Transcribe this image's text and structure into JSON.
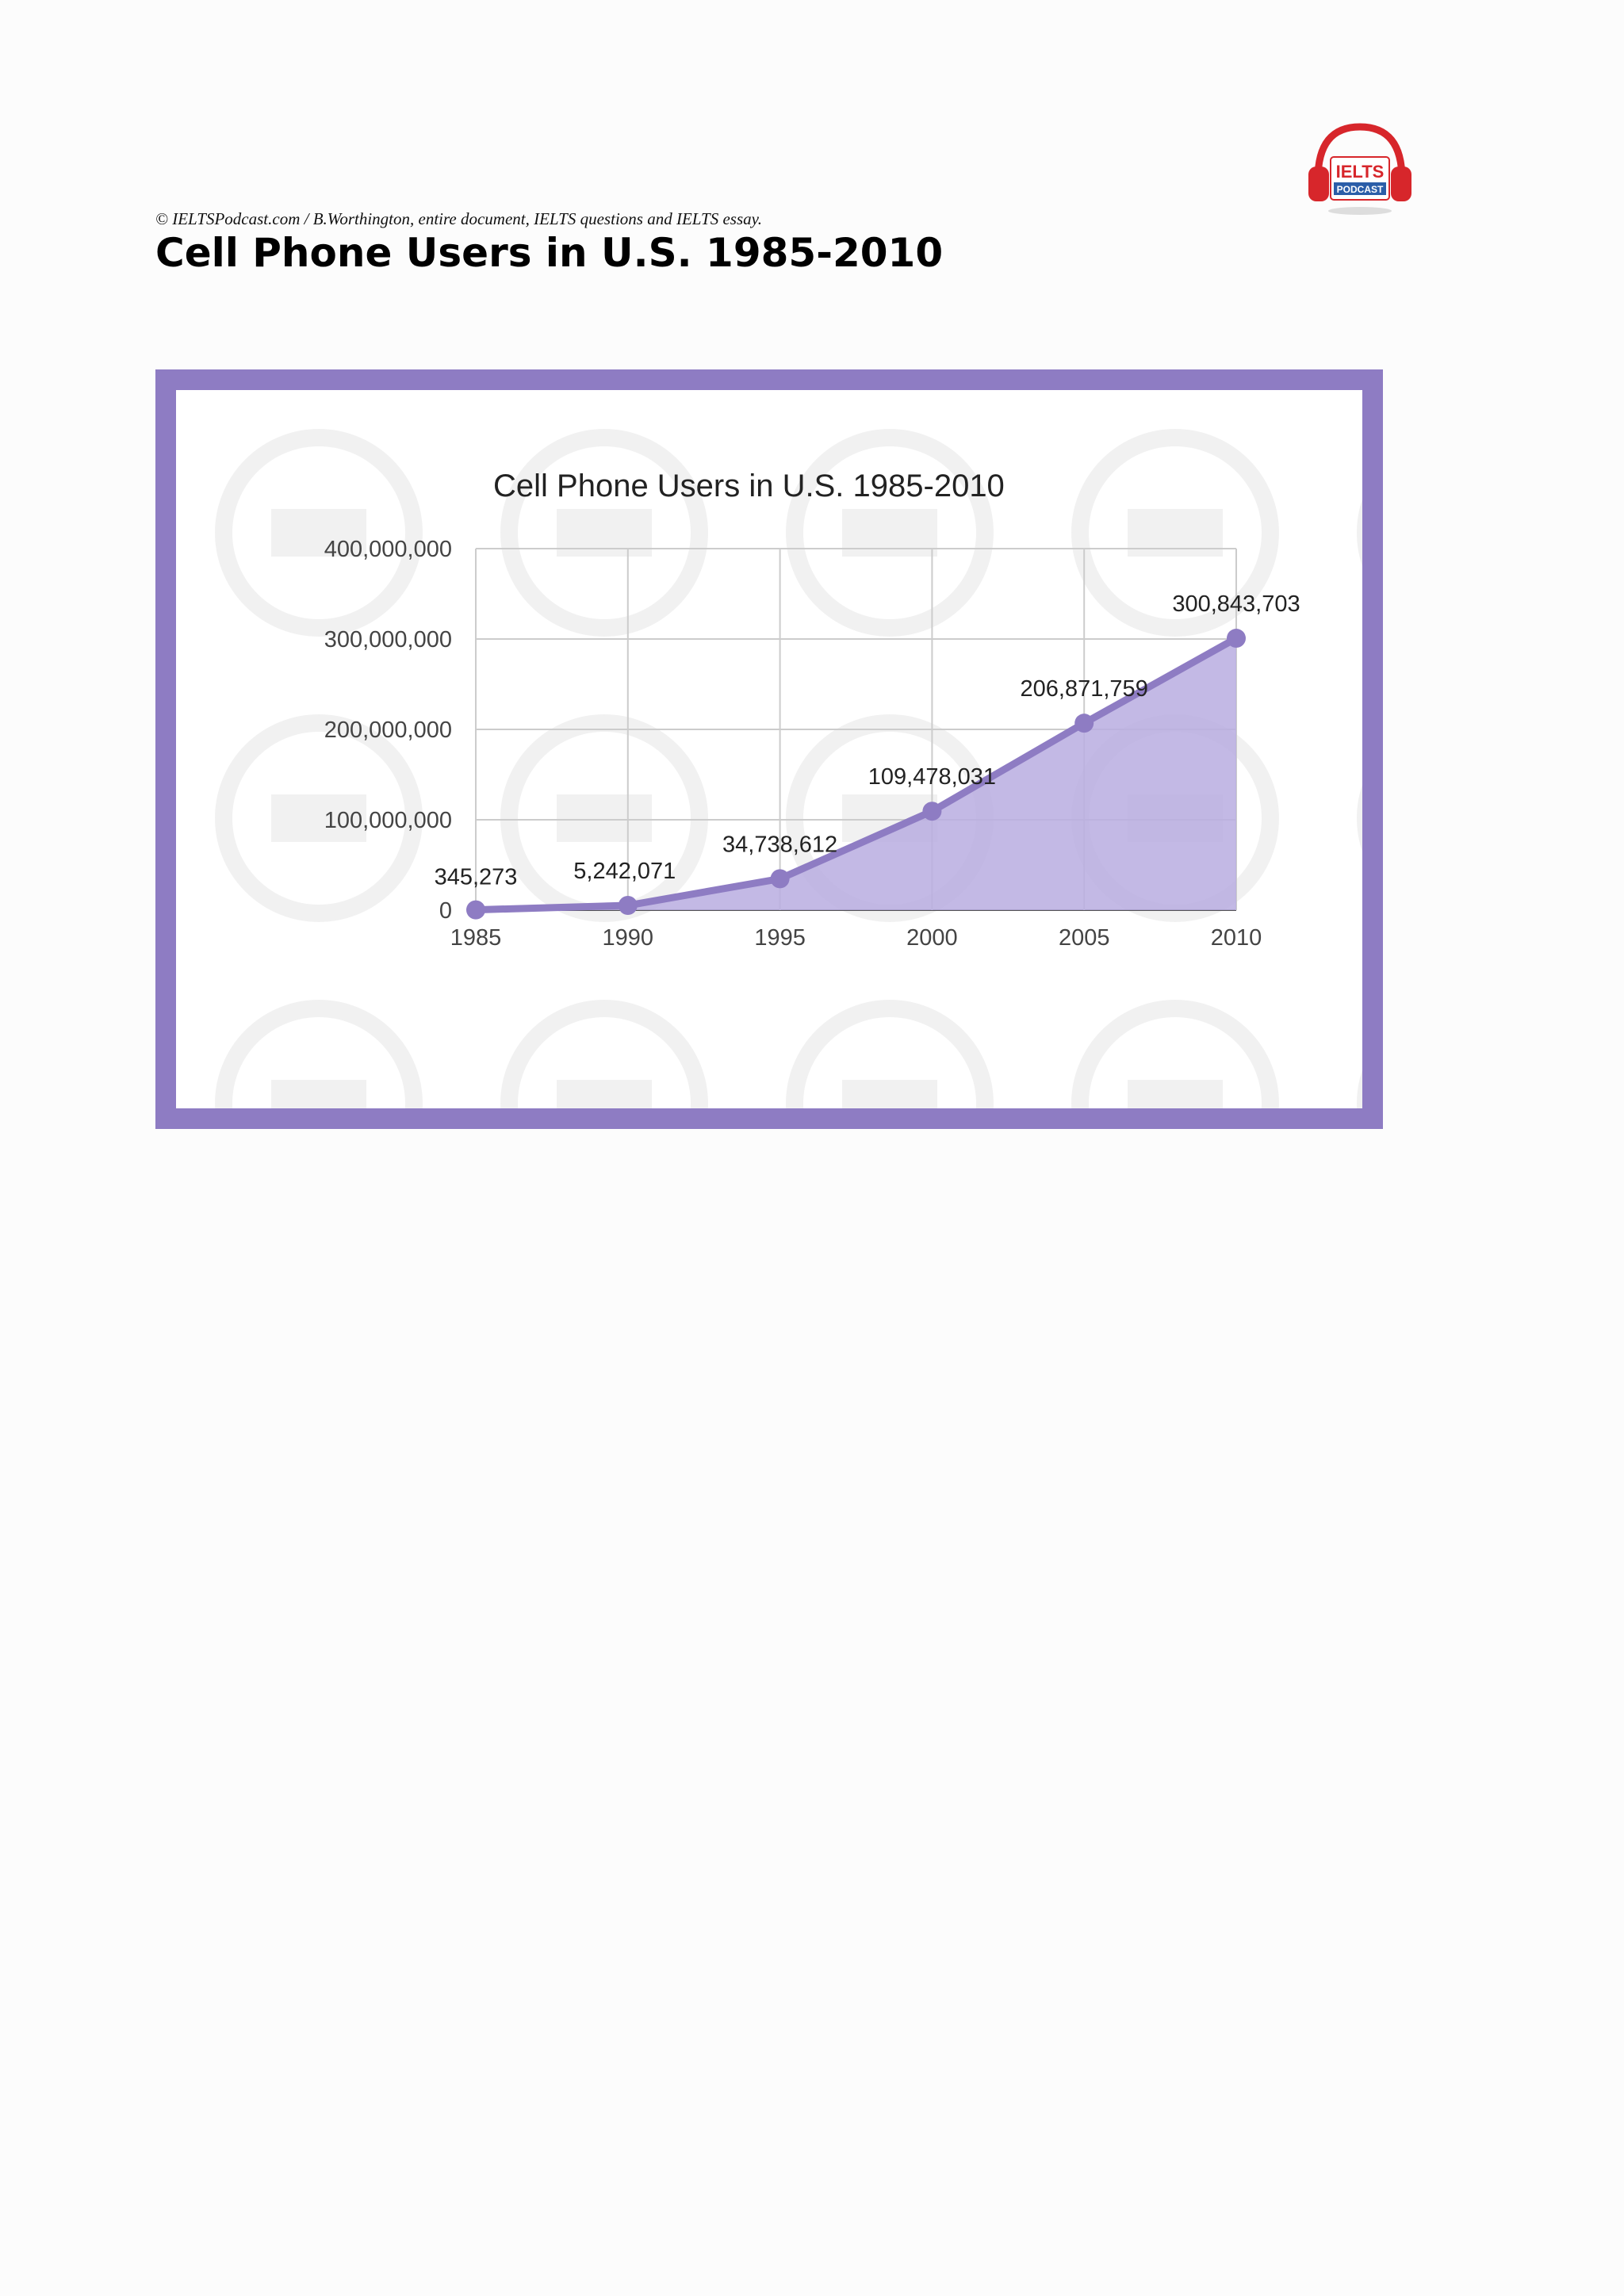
{
  "document": {
    "copyright": "© IELTSPodcast.com / B.Worthington, entire document, IELTS questions and IELTS essay.",
    "title": "Cell Phone Users in U.S. 1985-2010"
  },
  "logo": {
    "icon": "ielts-podcast-headphones-logo",
    "text_top": "IELTS",
    "text_bottom": "PODCAST",
    "colors": {
      "headphones": "#d7262b",
      "badge": "#2b5ea8"
    }
  },
  "colors": {
    "frame": "#8e7cc3",
    "line": "#8e7cc3",
    "area": "#b9ade0",
    "grid": "#cccccc"
  },
  "chart_data": {
    "type": "area",
    "title": "Cell Phone Users in U.S. 1985-2010",
    "xlabel": "",
    "ylabel": "",
    "x": [
      "1985",
      "1990",
      "1995",
      "2000",
      "2005",
      "2010"
    ],
    "values": [
      345273,
      5242071,
      34738612,
      109478031,
      206871759,
      300843703
    ],
    "data_labels": [
      "345,273",
      "5,242,071",
      "34,738,612",
      "109,478,031",
      "206,871,759",
      "300,843,703"
    ],
    "y_ticks": [
      0,
      100000000,
      200000000,
      300000000,
      400000000
    ],
    "y_tick_labels": [
      "0",
      "100,000,000",
      "200,000,000",
      "300,000,000",
      "400,000,000"
    ],
    "ylim": [
      0,
      400000000
    ],
    "grid": true,
    "legend": "none",
    "markers": true
  }
}
